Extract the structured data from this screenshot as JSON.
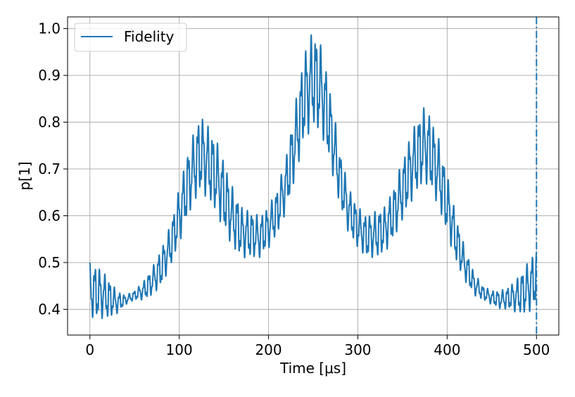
{
  "chart_data": {
    "type": "line",
    "title": "",
    "xlabel": "Time [μs]",
    "ylabel": "p[1]",
    "xlim": [
      -25,
      525
    ],
    "ylim": [
      0.345,
      1.025
    ],
    "xticks": [
      0,
      100,
      200,
      300,
      400,
      500
    ],
    "xtick_labels": [
      "0",
      "100",
      "200",
      "300",
      "400",
      "500"
    ],
    "yticks": [
      0.4,
      0.5,
      0.6,
      0.7,
      0.8,
      0.9,
      1.0
    ],
    "ytick_labels": [
      "0.4",
      "0.5",
      "0.6",
      "0.7",
      "0.8",
      "0.9",
      "1.0"
    ],
    "grid": true,
    "legend_position": "upper-left",
    "series": [
      {
        "name": "Fidelity",
        "color": "#1f77b4",
        "envelope": {
          "x": [
            0,
            10,
            20,
            30,
            40,
            50,
            60,
            70,
            80,
            90,
            100,
            110,
            120,
            125,
            130,
            140,
            150,
            160,
            170,
            180,
            190,
            200,
            210,
            220,
            230,
            240,
            250,
            260,
            270,
            280,
            290,
            300,
            310,
            320,
            330,
            340,
            350,
            360,
            370,
            375,
            380,
            390,
            400,
            410,
            420,
            430,
            440,
            450,
            460,
            470,
            480,
            490,
            500
          ],
          "upper": [
            0.5,
            0.49,
            0.47,
            0.44,
            0.43,
            0.44,
            0.46,
            0.49,
            0.53,
            0.58,
            0.66,
            0.74,
            0.8,
            0.815,
            0.8,
            0.77,
            0.72,
            0.66,
            0.62,
            0.61,
            0.6,
            0.62,
            0.66,
            0.73,
            0.84,
            0.95,
            1.0,
            0.96,
            0.86,
            0.74,
            0.66,
            0.62,
            0.6,
            0.61,
            0.62,
            0.66,
            0.72,
            0.78,
            0.82,
            0.835,
            0.82,
            0.77,
            0.69,
            0.6,
            0.53,
            0.48,
            0.45,
            0.44,
            0.44,
            0.45,
            0.47,
            0.5,
            0.53
          ],
          "lower": [
            0.38,
            0.38,
            0.38,
            0.39,
            0.41,
            0.42,
            0.42,
            0.43,
            0.45,
            0.49,
            0.54,
            0.6,
            0.64,
            0.65,
            0.64,
            0.61,
            0.57,
            0.53,
            0.51,
            0.51,
            0.51,
            0.53,
            0.56,
            0.61,
            0.68,
            0.76,
            0.79,
            0.77,
            0.7,
            0.62,
            0.56,
            0.53,
            0.51,
            0.51,
            0.52,
            0.55,
            0.59,
            0.63,
            0.66,
            0.67,
            0.66,
            0.62,
            0.56,
            0.5,
            0.46,
            0.43,
            0.42,
            0.41,
            0.4,
            0.4,
            0.39,
            0.39,
            0.41
          ]
        }
      }
    ],
    "vertical_line": {
      "x": 500,
      "style": "dash-dot",
      "color": "#1f77b4"
    }
  }
}
